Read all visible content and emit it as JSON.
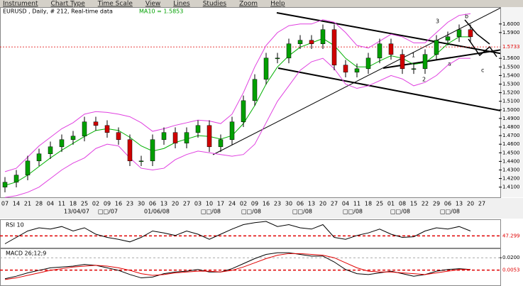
{
  "menu": [
    "Instrument",
    "Chart Type",
    "Time Scale",
    "View",
    "Lines",
    "Studies",
    "Zoom",
    "Help"
  ],
  "x_labels": [
    "07",
    "14",
    "21",
    "28",
    "04",
    "11",
    "18",
    "25",
    "02",
    "09",
    "16",
    "23",
    "30",
    "06",
    "13",
    "20",
    "27",
    "03",
    "10",
    "17",
    "24",
    "02",
    "09",
    "16",
    "23",
    "30",
    "06",
    "13",
    "20",
    "27",
    "04",
    "11",
    "18",
    "25",
    "01",
    "08",
    "15",
    "22",
    "29",
    "06",
    "13",
    "20",
    "27"
  ],
  "x_labels_2": [
    "13/04/07",
    "□□/07",
    "01/06/08",
    "□□/08",
    "□□/08",
    "□□/08",
    "□□/08",
    "□□/08",
    "□□/08"
  ],
  "annotations": [
    "1",
    "2",
    "3",
    "a",
    "b",
    "c"
  ],
  "chart_data": [
    {
      "type": "candlestick",
      "title": "EURUSD , Daily, # 212, Real-time data",
      "subtitle": "MA10 = 1.5853",
      "up_color": "#00a000",
      "down_color": "#d00000",
      "open": [
        1.41,
        1.4157,
        1.424,
        1.4405,
        1.4488,
        1.457,
        1.4653,
        1.4694,
        1.486,
        1.4818,
        1.4736,
        1.4653,
        1.4405,
        1.4405,
        1.4653,
        1.4736,
        1.4612,
        1.4736,
        1.4818,
        1.457,
        1.4653,
        1.486,
        1.5107,
        1.5355,
        1.5603,
        1.5603,
        1.5769,
        1.581,
        1.5769,
        1.5934,
        1.5521,
        1.5438,
        1.5479,
        1.5603,
        1.5769,
        1.5645,
        1.5479,
        1.5479,
        1.5645,
        1.581,
        1.5851,
        1.5934
      ],
      "high": [
        1.4217,
        1.43,
        1.4465,
        1.4548,
        1.463,
        1.4713,
        1.4754,
        1.492,
        1.492,
        1.4878,
        1.4796,
        1.4713,
        1.4465,
        1.4713,
        1.4796,
        1.4796,
        1.4796,
        1.4878,
        1.4878,
        1.4713,
        1.492,
        1.5167,
        1.5415,
        1.5663,
        1.5663,
        1.5829,
        1.587,
        1.587,
        1.5994,
        1.5994,
        1.5581,
        1.5539,
        1.5663,
        1.5829,
        1.5829,
        1.5705,
        1.5539,
        1.5705,
        1.587,
        1.5911,
        1.5994,
        1.5994
      ],
      "low": [
        1.404,
        1.4097,
        1.418,
        1.4345,
        1.4428,
        1.451,
        1.4593,
        1.4634,
        1.4758,
        1.4676,
        1.4593,
        1.4345,
        1.4345,
        1.4345,
        1.4593,
        1.4552,
        1.4552,
        1.4676,
        1.451,
        1.451,
        1.4593,
        1.48,
        1.5047,
        1.5295,
        1.5543,
        1.5543,
        1.5709,
        1.5709,
        1.5709,
        1.5461,
        1.5378,
        1.5378,
        1.5419,
        1.5543,
        1.5585,
        1.5419,
        1.5419,
        1.5419,
        1.5585,
        1.575,
        1.5791,
        1.5791
      ],
      "close": [
        1.4157,
        1.424,
        1.4405,
        1.4488,
        1.457,
        1.4653,
        1.4694,
        1.486,
        1.4818,
        1.4736,
        1.4653,
        1.4405,
        1.4405,
        1.4653,
        1.4736,
        1.4612,
        1.4736,
        1.4818,
        1.457,
        1.4653,
        1.486,
        1.5107,
        1.5355,
        1.5603,
        1.5603,
        1.5769,
        1.581,
        1.5769,
        1.5934,
        1.5521,
        1.5438,
        1.5479,
        1.5603,
        1.5769,
        1.5645,
        1.5479,
        1.5479,
        1.5645,
        1.581,
        1.5851,
        1.5934,
        1.5851
      ],
      "series": [
        {
          "name": "MA10",
          "color": "#00b000",
          "values": [
            1.412,
            1.416,
            1.424,
            1.434,
            1.444,
            1.453,
            1.461,
            1.469,
            1.476,
            1.478,
            1.476,
            1.468,
            1.458,
            1.452,
            1.455,
            1.462,
            1.466,
            1.47,
            1.469,
            1.466,
            1.47,
            1.484,
            1.505,
            1.53,
            1.55,
            1.563,
            1.573,
            1.578,
            1.583,
            1.575,
            1.56,
            1.55,
            1.55,
            1.557,
            1.563,
            1.56,
            1.553,
            1.555,
            1.565,
            1.577,
            1.585,
            1.585
          ]
        },
        {
          "name": "Upper band",
          "color": "#e040e0",
          "values": [
            1.428,
            1.432,
            1.445,
            1.458,
            1.468,
            1.478,
            1.485,
            1.495,
            1.498,
            1.497,
            1.495,
            1.492,
            1.485,
            1.475,
            1.478,
            1.482,
            1.485,
            1.488,
            1.487,
            1.484,
            1.495,
            1.52,
            1.55,
            1.575,
            1.59,
            1.598,
            1.6,
            1.6,
            1.605,
            1.602,
            1.59,
            1.575,
            1.572,
            1.58,
            1.588,
            1.585,
            1.578,
            1.578,
            1.59,
            1.602,
            1.61,
            1.612
          ]
        },
        {
          "name": "Lower band",
          "color": "#e040e0",
          "values": [
            1.398,
            1.4,
            1.404,
            1.41,
            1.42,
            1.43,
            1.438,
            1.444,
            1.455,
            1.46,
            1.458,
            1.444,
            1.432,
            1.43,
            1.432,
            1.442,
            1.448,
            1.452,
            1.45,
            1.448,
            1.446,
            1.448,
            1.46,
            1.485,
            1.51,
            1.528,
            1.546,
            1.556,
            1.56,
            1.548,
            1.53,
            1.525,
            1.528,
            1.534,
            1.54,
            1.536,
            1.528,
            1.532,
            1.54,
            1.552,
            1.56,
            1.56
          ]
        }
      ],
      "ylim": [
        1.399,
        1.618
      ],
      "yticks": [
        {
          "value": 1.6,
          "label": "1.6000"
        },
        {
          "value": 1.59,
          "label": "1.5900"
        },
        {
          "value": 1.56,
          "label": "1.5600"
        },
        {
          "value": 1.55,
          "label": "1.5500"
        },
        {
          "value": 1.54,
          "label": "1.5400"
        },
        {
          "value": 1.53,
          "label": "1.5300"
        },
        {
          "value": 1.52,
          "label": "1.5200"
        },
        {
          "value": 1.51,
          "label": "1.5100"
        },
        {
          "value": 1.5,
          "label": "1.5000"
        },
        {
          "value": 1.49,
          "label": "1.4900"
        },
        {
          "value": 1.48,
          "label": "1.4800"
        },
        {
          "value": 1.47,
          "label": "1.4700"
        },
        {
          "value": 1.46,
          "label": "1.4600"
        },
        {
          "value": 1.45,
          "label": "1.4500"
        },
        {
          "value": 1.44,
          "label": "1.4400"
        },
        {
          "value": 1.43,
          "label": "1.4300"
        },
        {
          "value": 1.42,
          "label": "1.4200"
        },
        {
          "value": 1.41,
          "label": "1.4100"
        }
      ],
      "current_value": {
        "value": 1.5733,
        "label": "1.5733"
      },
      "current_color": "#e00000"
    },
    {
      "type": "line",
      "title": "RSI 10",
      "series": [
        {
          "name": "RSI",
          "color": "#000000",
          "values": [
            35,
            45,
            55,
            60,
            58,
            62,
            55,
            60,
            50,
            45,
            42,
            38,
            45,
            55,
            52,
            48,
            55,
            50,
            42,
            50,
            58,
            65,
            68,
            70,
            62,
            65,
            60,
            58,
            65,
            45,
            42,
            48,
            52,
            58,
            50,
            45,
            46,
            55,
            60,
            58,
            62,
            55
          ]
        }
      ],
      "ylim": [
        30,
        70
      ],
      "yticks": [],
      "current_value": {
        "value": 47.299,
        "label": "47.299"
      },
      "current_color": "#e00000"
    },
    {
      "type": "line",
      "title": "MACD 26;12;9",
      "series": [
        {
          "name": "MACD",
          "color": "#000000",
          "values": [
            -0.005,
            -0.002,
            0.002,
            0.005,
            0.008,
            0.009,
            0.01,
            0.012,
            0.011,
            0.008,
            0.005,
            0.0,
            -0.004,
            -0.003,
            0.001,
            0.003,
            0.004,
            0.006,
            0.003,
            0.003,
            0.007,
            0.013,
            0.019,
            0.024,
            0.026,
            0.026,
            0.024,
            0.022,
            0.022,
            0.015,
            0.006,
            0.001,
            0.0,
            0.002,
            0.004,
            0.001,
            -0.002,
            0.0,
            0.004,
            0.006,
            0.007,
            0.006
          ]
        },
        {
          "name": "Signal",
          "color": "#e00000",
          "values": [
            -0.006,
            -0.004,
            -0.001,
            0.002,
            0.005,
            0.007,
            0.009,
            0.01,
            0.011,
            0.01,
            0.008,
            0.005,
            0.001,
            -0.001,
            0.0,
            0.002,
            0.003,
            0.004,
            0.004,
            0.003,
            0.005,
            0.009,
            0.014,
            0.019,
            0.023,
            0.025,
            0.025,
            0.024,
            0.023,
            0.02,
            0.014,
            0.008,
            0.004,
            0.003,
            0.003,
            0.002,
            0.001,
            0.0,
            0.002,
            0.004,
            0.006,
            0.006
          ]
        }
      ],
      "ylim": [
        -0.012,
        0.0295
      ],
      "yticks": [
        {
          "value": 0.02,
          "label": "0.0200"
        }
      ],
      "current_value": {
        "value": 0.0053,
        "label": "0.0053"
      },
      "current_color": "#e00000"
    }
  ]
}
